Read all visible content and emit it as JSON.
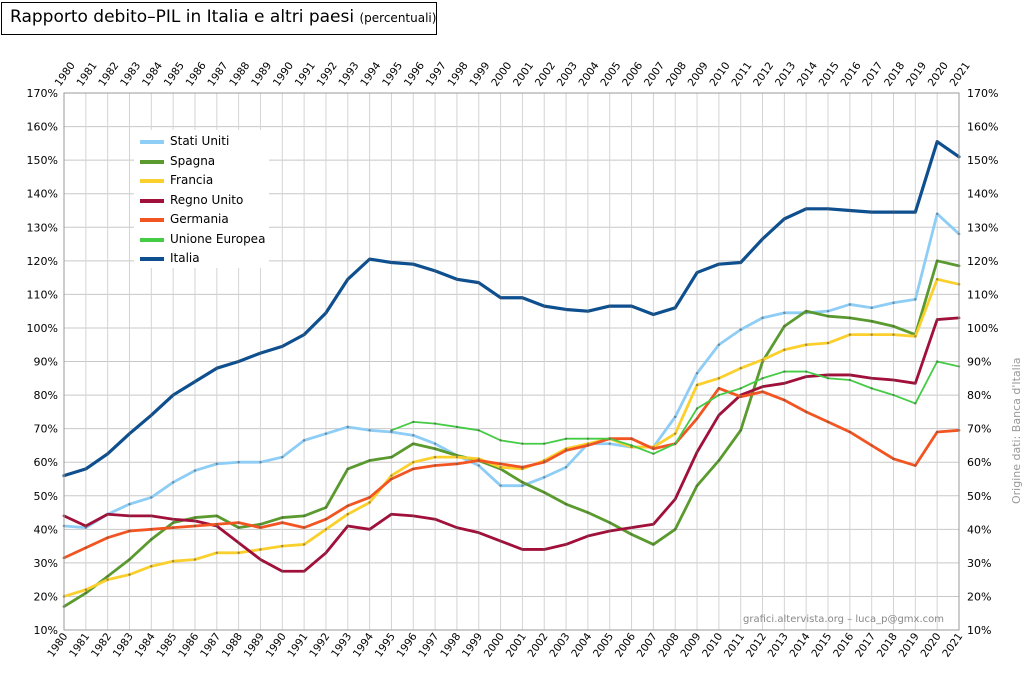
{
  "title": "Rapporto debito–PIL in Italia e altri paesi",
  "subtitle": "(percentuali)",
  "source_note": "Origine dati: Banca d'Italia",
  "credit": "grafici.altervista.org – luca_p@gmx.com",
  "colors": {
    "Stati Uniti": "#8ecdf5",
    "Spagna": "#5a9a2e",
    "Francia": "#fbd02c",
    "Regno Unito": "#a0103a",
    "Germania": "#f25522",
    "Unione Europea": "#44cc44",
    "Italia": "#0d4f8f"
  },
  "chart_data": {
    "type": "line",
    "title": "Rapporto debito–PIL in Italia e altri paesi (percentuali)",
    "xlabel": "",
    "ylabel": "",
    "x": [
      "1980",
      "1981",
      "1982",
      "1983",
      "1984",
      "1985",
      "1986",
      "1987",
      "1988",
      "1989",
      "1990",
      "1991",
      "1992",
      "1993",
      "1994",
      "1995",
      "1996",
      "1997",
      "1998",
      "1999",
      "2000",
      "2001",
      "2002",
      "2003",
      "2004",
      "2005",
      "2006",
      "2007",
      "2008",
      "2009",
      "2010",
      "2011",
      "2012",
      "2013",
      "2014",
      "2015",
      "2016",
      "2017",
      "2018",
      "2019",
      "2020",
      "2021"
    ],
    "ylim": [
      10,
      170
    ],
    "yticks": [
      "10%",
      "20%",
      "30%",
      "40%",
      "50%",
      "60%",
      "70%",
      "80%",
      "90%",
      "100%",
      "110%",
      "120%",
      "130%",
      "140%",
      "150%",
      "160%",
      "170%"
    ],
    "grid": true,
    "legend_position": "top-left",
    "series": [
      {
        "name": "Stati Uniti",
        "values": [
          41,
          40.5,
          44.5,
          47.5,
          49.5,
          54,
          57.5,
          59.5,
          60,
          60,
          61.5,
          66.5,
          68.5,
          70.5,
          69.5,
          69,
          68,
          65.5,
          62,
          59,
          53,
          53,
          55.5,
          58.5,
          65.5,
          65.5,
          64.5,
          64.5,
          73.5,
          86.5,
          95,
          99.5,
          103,
          104.5,
          104.5,
          105,
          107,
          106,
          107.5,
          108.5,
          134,
          128
        ]
      },
      {
        "name": "Spagna",
        "values": [
          17,
          21,
          26,
          31,
          37,
          42,
          43.5,
          44,
          40.5,
          41.5,
          43.5,
          44,
          46.5,
          58,
          60.5,
          61.5,
          65.5,
          64,
          62,
          60.5,
          58,
          54,
          51,
          47.5,
          45,
          42,
          38.5,
          35.5,
          40,
          53,
          60.5,
          69.5,
          90,
          100.5,
          105,
          103.5,
          103,
          102,
          100.5,
          98,
          120,
          118.5
        ]
      },
      {
        "name": "Francia",
        "values": [
          20,
          22,
          25,
          26.5,
          29,
          30.5,
          31,
          33,
          33,
          34,
          35,
          35.5,
          40,
          44.5,
          48,
          56,
          60,
          61.5,
          61.5,
          61,
          58.5,
          58,
          60.5,
          64,
          65.5,
          67,
          64.5,
          64.5,
          68.5,
          83,
          85,
          88,
          90.5,
          93.5,
          95,
          95.5,
          98,
          98,
          98,
          97.5,
          114.5,
          113
        ]
      },
      {
        "name": "Regno Unito",
        "values": [
          44,
          41,
          44.5,
          44,
          44,
          43,
          42.5,
          41,
          36,
          31,
          27.5,
          27.5,
          33,
          41,
          40,
          44.5,
          44,
          43,
          40.5,
          39,
          36.5,
          34,
          34,
          35.5,
          38,
          39.5,
          40.5,
          41.5,
          49,
          63,
          74,
          80,
          82.5,
          83.5,
          85.5,
          86,
          86,
          85,
          84.5,
          83.5,
          102.5,
          103
        ]
      },
      {
        "name": "Germania",
        "values": [
          31.5,
          34.5,
          37.5,
          39.5,
          40,
          40.5,
          41,
          41.5,
          42,
          40.5,
          42,
          40.5,
          43,
          47,
          49.5,
          55,
          58,
          59,
          59.5,
          60.5,
          59.5,
          58.5,
          60,
          63.5,
          65,
          67,
          67,
          64,
          65.5,
          73,
          82,
          79.5,
          81,
          78.5,
          75,
          72,
          69,
          65,
          61,
          59,
          69,
          69.5
        ]
      },
      {
        "name": "Unione Europea",
        "values": [
          null,
          null,
          null,
          null,
          null,
          null,
          null,
          null,
          null,
          null,
          null,
          null,
          null,
          null,
          null,
          69.5,
          72,
          71.5,
          70.5,
          69.5,
          66.5,
          65.5,
          65.5,
          67,
          67,
          67,
          65,
          62.5,
          65.5,
          76,
          80,
          82,
          85,
          87,
          87,
          85,
          84.5,
          82,
          80,
          77.5,
          90,
          88.5
        ]
      },
      {
        "name": "Italia",
        "values": [
          56,
          58,
          62.5,
          68.5,
          74,
          80,
          84,
          88,
          90,
          92.5,
          94.5,
          98,
          104.5,
          114.5,
          120.5,
          119.5,
          119,
          117,
          114.5,
          113.5,
          109,
          109,
          106.5,
          105.5,
          105,
          106.5,
          106.5,
          104,
          106,
          116.5,
          119,
          119.5,
          126.5,
          132.5,
          135.5,
          135.5,
          135,
          134.5,
          134.5,
          134.5,
          155.5,
          151
        ]
      }
    ]
  }
}
